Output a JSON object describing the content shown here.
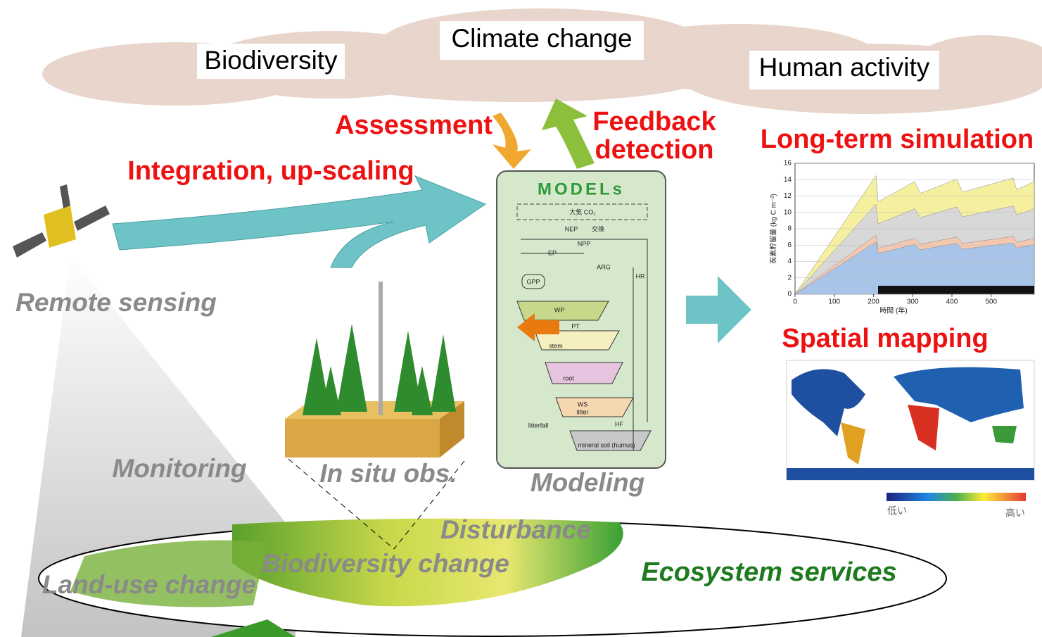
{
  "clouds": {
    "biodiversity": "Biodiversity",
    "climate": "Climate change",
    "human": "Human activity"
  },
  "flows": {
    "assessment": "Assessment",
    "feedback": [
      "Feedback",
      "detection"
    ],
    "integration": "Integration, up-scaling"
  },
  "model": {
    "title": "MODELs",
    "labels": [
      "大気 CO₂",
      "NEP",
      "交換",
      "NPP",
      "EP",
      "ARG",
      "HR",
      "GPP",
      "PT",
      "WP",
      "stem",
      "root",
      "WS",
      "litter",
      "litterfall",
      "HF",
      "mineral soil (humus)"
    ]
  },
  "outputs": {
    "simulation": {
      "title": "Long-term simulation",
      "ylabel": "炭素貯留量 (kg C m⁻²)",
      "xlabel": "時間 (年)",
      "ylim": [
        0,
        16
      ],
      "yticks": [
        0,
        2,
        4,
        6,
        8,
        10,
        12,
        14,
        16
      ],
      "xlim": [
        0,
        610
      ],
      "xticks": [
        0,
        100,
        200,
        300,
        400,
        500
      ]
    },
    "mapping": {
      "title": "Spatial mapping",
      "low": "低い",
      "high": "高い"
    }
  },
  "activities": {
    "remote": "Remote sensing",
    "monitoring": "Monitoring",
    "insitu": "In situ obs.",
    "modeling": "Modeling",
    "disturbance": "Disturbance",
    "biodiversity_change": "Biodiversity change",
    "landuse": "Land-use change",
    "services": "Ecosystem services"
  }
}
